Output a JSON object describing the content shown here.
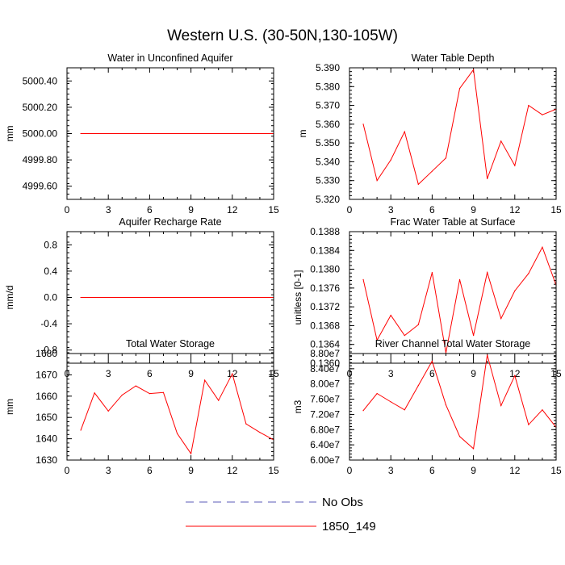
{
  "title": "Western U.S. (30-50N,130-105W)",
  "legend": {
    "items": [
      {
        "label": "No Obs",
        "color": "#5b5bb8",
        "dash": true
      },
      {
        "label": "1850_149",
        "color": "#ff0000",
        "dash": false
      }
    ]
  },
  "chart_data": [
    {
      "type": "line",
      "title": "Water in Unconfined Aquifer",
      "ylabel": "mm",
      "xlim": [
        0,
        15
      ],
      "xticks": [
        0,
        3,
        6,
        9,
        12,
        15
      ],
      "ylim": [
        4999.5,
        5000.5
      ],
      "yticks": [
        4999.6,
        4999.8,
        5000.0,
        5000.2,
        5000.4
      ],
      "ytick_labels": [
        "4999.60",
        "4999.80",
        "5000.00",
        "5000.20",
        "5000.40"
      ],
      "series": [
        {
          "name": "1850_149",
          "color": "#ff0000",
          "x": [
            1,
            2,
            3,
            4,
            5,
            6,
            7,
            8,
            9,
            10,
            11,
            12,
            13,
            14,
            15
          ],
          "y": [
            5000,
            5000,
            5000,
            5000,
            5000,
            5000,
            5000,
            5000,
            5000,
            5000,
            5000,
            5000,
            5000,
            5000,
            5000
          ]
        }
      ]
    },
    {
      "type": "line",
      "title": "Water Table Depth",
      "ylabel": "m",
      "xlim": [
        0,
        15
      ],
      "xticks": [
        0,
        3,
        6,
        9,
        12,
        15
      ],
      "ylim": [
        5.32,
        5.39
      ],
      "yticks": [
        5.32,
        5.33,
        5.34,
        5.35,
        5.36,
        5.37,
        5.38,
        5.39
      ],
      "ytick_labels": [
        "5.320",
        "5.330",
        "5.340",
        "5.350",
        "5.360",
        "5.370",
        "5.380",
        "5.390"
      ],
      "series": [
        {
          "name": "1850_149",
          "color": "#ff0000",
          "x": [
            1,
            2,
            3,
            4,
            5,
            6,
            7,
            8,
            9,
            10,
            11,
            12,
            13,
            14,
            15
          ],
          "y": [
            5.36,
            5.33,
            5.341,
            5.356,
            5.328,
            5.335,
            5.342,
            5.379,
            5.389,
            5.331,
            5.351,
            5.338,
            5.37,
            5.365,
            5.368
          ]
        }
      ]
    },
    {
      "type": "line",
      "title": "Aquifer Recharge Rate",
      "ylabel": "mm/d",
      "xlim": [
        0,
        15
      ],
      "xticks": [
        0,
        3,
        6,
        9,
        12,
        15
      ],
      "ylim": [
        -1.0,
        1.0
      ],
      "yticks": [
        -0.8,
        -0.4,
        0.0,
        0.4,
        0.8
      ],
      "ytick_labels": [
        "-0.8",
        "-0.4",
        "0.0",
        "0.4",
        "0.8"
      ],
      "series": [
        {
          "name": "1850_149",
          "color": "#ff0000",
          "x": [
            1,
            2,
            3,
            4,
            5,
            6,
            7,
            8,
            9,
            10,
            11,
            12,
            13,
            14,
            15
          ],
          "y": [
            0,
            0,
            0,
            0,
            0,
            0,
            0,
            0,
            0,
            0,
            0,
            0,
            0,
            0,
            0
          ]
        }
      ]
    },
    {
      "type": "line",
      "title": "Frac Water Table at Surface",
      "ylabel": "unitless [0-1]",
      "xlim": [
        0,
        15
      ],
      "xticks": [
        0,
        3,
        6,
        9,
        12,
        15
      ],
      "ylim": [
        0.136,
        0.1388
      ],
      "yticks": [
        0.136,
        0.1364,
        0.1368,
        0.1372,
        0.1376,
        0.138,
        0.1384,
        0.1388
      ],
      "ytick_labels": [
        "0.1360",
        "0.1364",
        "0.1368",
        "0.1372",
        "0.1376",
        "0.1380",
        "0.1384",
        "0.1388"
      ],
      "series": [
        {
          "name": "1850_149",
          "color": "#ff0000",
          "x": [
            1,
            2,
            3,
            4,
            5,
            6,
            7,
            8,
            9,
            10,
            11,
            12,
            13,
            14,
            15
          ],
          "y": [
            0.13778,
            0.13649,
            0.13702,
            0.13659,
            0.13682,
            0.13793,
            0.13622,
            0.13778,
            0.13659,
            0.13793,
            0.13695,
            0.13754,
            0.13791,
            0.13847,
            0.13766
          ]
        }
      ]
    },
    {
      "type": "line",
      "title": "Total Water Storage",
      "ylabel": "mm",
      "xlim": [
        0,
        15
      ],
      "xticks": [
        0,
        3,
        6,
        9,
        12,
        15
      ],
      "ylim": [
        1630,
        1680
      ],
      "yticks": [
        1630,
        1640,
        1650,
        1660,
        1670,
        1680
      ],
      "ytick_labels": [
        "1630",
        "1640",
        "1650",
        "1660",
        "1670",
        "1680"
      ],
      "series": [
        {
          "name": "1850_149",
          "color": "#ff0000",
          "x": [
            1,
            2,
            3,
            4,
            5,
            6,
            7,
            8,
            9,
            10,
            11,
            12,
            13,
            14,
            15
          ],
          "y": [
            1644,
            1661.5,
            1653,
            1660.5,
            1664.8,
            1661.2,
            1661.7,
            1642.5,
            1633,
            1667.5,
            1658,
            1670.5,
            1647,
            1643,
            1639.5
          ]
        }
      ]
    },
    {
      "type": "line",
      "title": "River Channel Total Water Storage",
      "ylabel": "m3",
      "xlim": [
        0,
        15
      ],
      "xticks": [
        0,
        3,
        6,
        9,
        12,
        15
      ],
      "ylim": [
        60000000,
        88000000
      ],
      "yticks": [
        60000000,
        64000000,
        68000000,
        72000000,
        76000000,
        80000000,
        84000000,
        88000000
      ],
      "ytick_labels": [
        "6.00e7",
        "6.40e7",
        "6.80e7",
        "7.20e7",
        "7.60e7",
        "8.00e7",
        "8.40e7",
        "8.80e7"
      ],
      "series": [
        {
          "name": "1850_149",
          "color": "#ff0000",
          "x": [
            1,
            2,
            3,
            4,
            5,
            6,
            7,
            8,
            9,
            10,
            11,
            12,
            13,
            14,
            15
          ],
          "y": [
            73000000,
            77500000,
            75300000,
            73200000,
            79600000,
            86000000,
            74500000,
            66200000,
            63000000,
            87600000,
            74300000,
            82200000,
            69300000,
            73200000,
            68600000
          ]
        }
      ]
    }
  ]
}
